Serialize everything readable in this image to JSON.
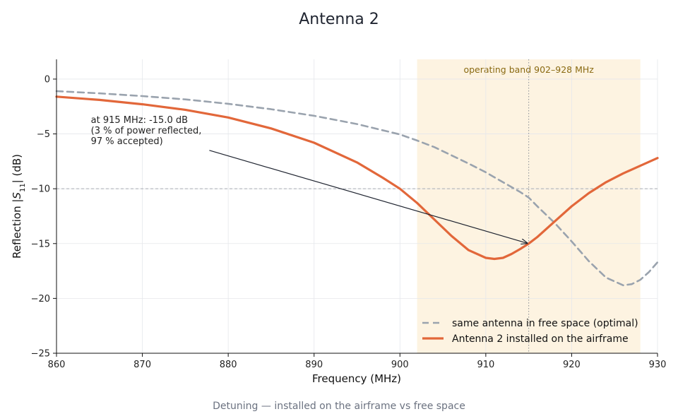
{
  "chart_data": {
    "type": "line",
    "title": "Antenna 2",
    "xlabel": "Frequency (MHz)",
    "ylabel_prefix": "Reflection  |",
    "ylabel_symbol": "S",
    "ylabel_sub": "11",
    "ylabel_suffix": "|  (dB)",
    "caption": "Detuning — installed on the airframe vs free space",
    "xlim": [
      860,
      930
    ],
    "ylim": [
      -25,
      1.8
    ],
    "xticks": [
      860,
      870,
      880,
      890,
      900,
      910,
      920,
      930
    ],
    "yticks": [
      0,
      -5,
      -10,
      -15,
      -20,
      -25
    ],
    "ytick_labels": [
      "0",
      "−5",
      "−10",
      "−15",
      "−20",
      "−25"
    ],
    "grid": true,
    "legend_position": "bottom-right",
    "band": {
      "from": 902,
      "to": 928,
      "label": "operating band 902–928 MHz",
      "color": "#fdf3e1"
    },
    "reference_line": {
      "y": -10
    },
    "marker_line": {
      "x": 915
    },
    "annotation": {
      "lines": [
        "at 915 MHz: -15.0 dB",
        "(3 % of power reflected,",
        "97 % accepted)"
      ],
      "text_anchor": {
        "x": 864,
        "y": -4.0
      },
      "arrow_from": {
        "x": 877.8,
        "y": -6.5
      },
      "arrow_to": {
        "x": 915,
        "y": -15.0
      }
    },
    "series": [
      {
        "name": "same antenna in free space (optimal)",
        "style": "dashed",
        "color": "#9aa3ae",
        "x": [
          860,
          865,
          870,
          875,
          880,
          885,
          890,
          895,
          900,
          902,
          904,
          906,
          908,
          910,
          912,
          914,
          915,
          916,
          918,
          920,
          922,
          924,
          926,
          927,
          928,
          929,
          930
        ],
        "y": [
          -1.1,
          -1.3,
          -1.55,
          -1.85,
          -2.25,
          -2.75,
          -3.35,
          -4.1,
          -5.05,
          -5.6,
          -6.2,
          -6.95,
          -7.7,
          -8.5,
          -9.4,
          -10.3,
          -10.8,
          -11.6,
          -13.1,
          -14.8,
          -16.6,
          -18.1,
          -18.8,
          -18.7,
          -18.3,
          -17.6,
          -16.7
        ]
      },
      {
        "name": "Antenna 2 installed on the airframe",
        "style": "solid",
        "color": "#e2673a",
        "x": [
          860,
          865,
          870,
          875,
          880,
          885,
          890,
          895,
          898,
          900,
          902,
          904,
          906,
          908,
          910,
          911,
          912,
          913,
          914,
          915,
          916,
          918,
          920,
          922,
          924,
          926,
          928,
          930
        ],
        "y": [
          -1.6,
          -1.9,
          -2.3,
          -2.8,
          -3.5,
          -4.5,
          -5.8,
          -7.6,
          -9.0,
          -10.0,
          -11.3,
          -12.8,
          -14.3,
          -15.6,
          -16.3,
          -16.4,
          -16.3,
          -15.95,
          -15.5,
          -15.0,
          -14.4,
          -13.0,
          -11.6,
          -10.4,
          -9.4,
          -8.6,
          -7.9,
          -7.2
        ]
      }
    ]
  }
}
